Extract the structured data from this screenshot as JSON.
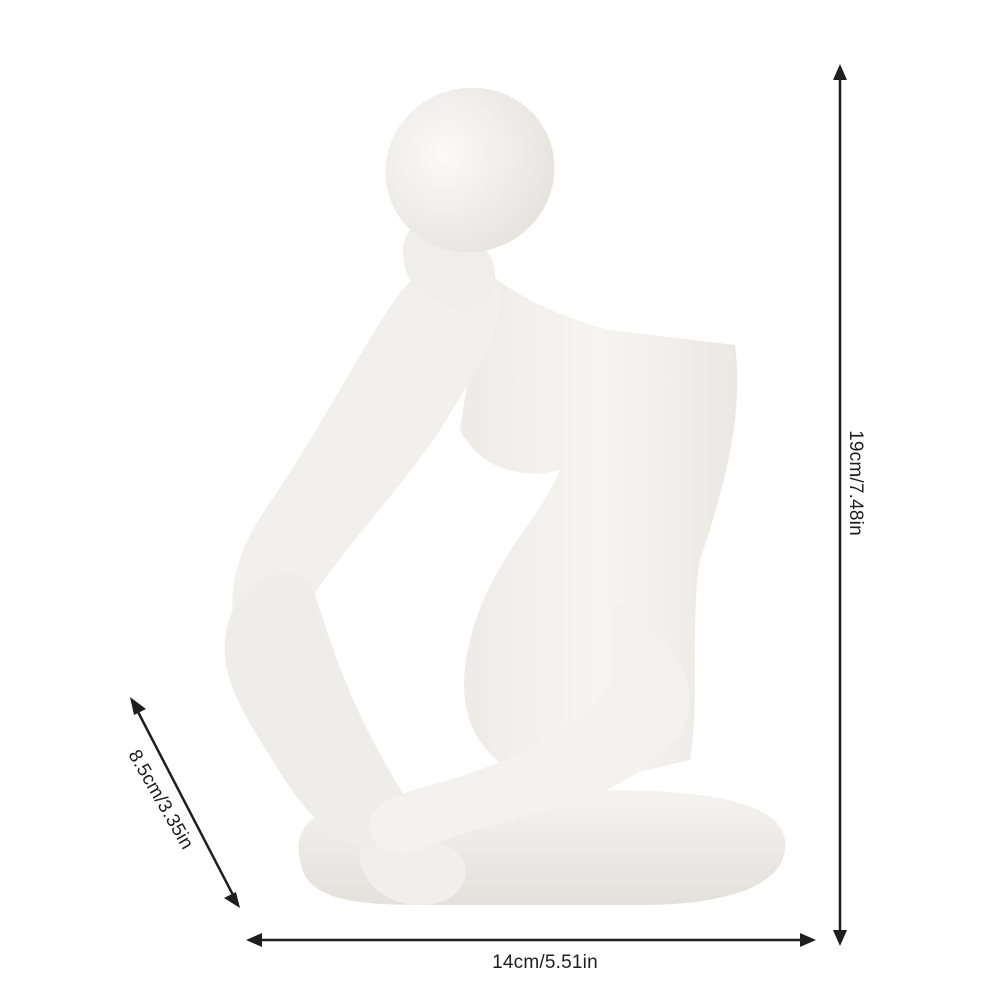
{
  "dimensions": {
    "height": "19cm/7.48in",
    "width": "14cm/5.51in",
    "depth": "8.5cm/3.35in"
  },
  "product": {
    "subject": "thinker-statue",
    "color": "#f3f1ee"
  },
  "colors": {
    "background": "#ffffff",
    "arrow": "#1e1e1e"
  }
}
